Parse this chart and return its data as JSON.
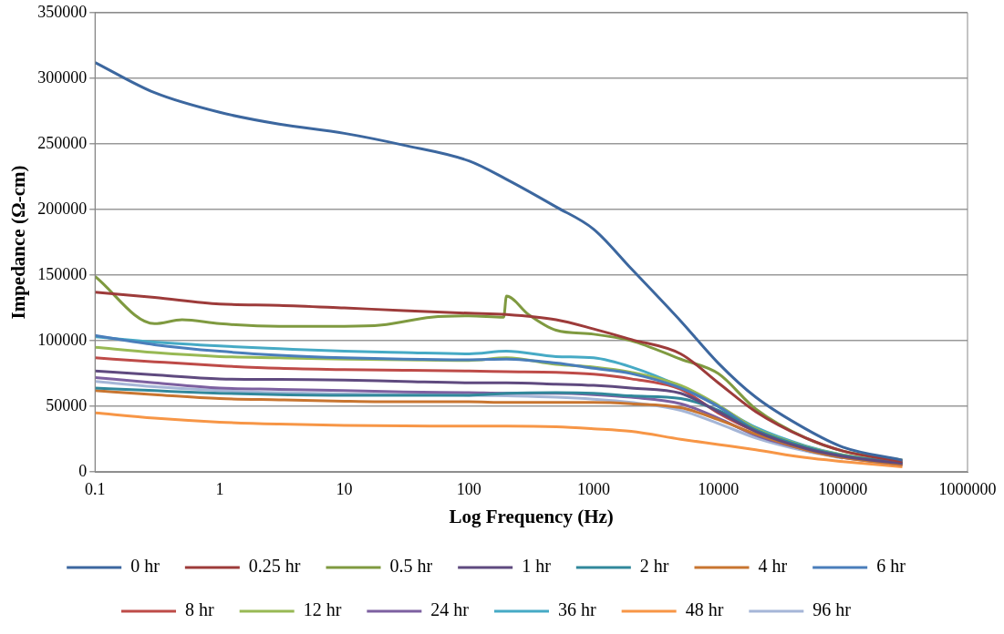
{
  "chart_data": {
    "type": "line",
    "xlabel": "Log Frequency (Hz)",
    "ylabel": "Impedance (Ω-cm)",
    "log": "x",
    "grid": "y",
    "legend": "bottom",
    "marker": "none",
    "xlim": [
      0.1,
      1000000
    ],
    "xticks": [
      0.1,
      1,
      10,
      100,
      1000,
      10000,
      100000,
      1000000
    ],
    "ylim": [
      0,
      350000
    ],
    "yticks": [
      0,
      50000,
      100000,
      150000,
      200000,
      250000,
      300000,
      350000
    ],
    "x": [
      0.1,
      0.3,
      1,
      3,
      10,
      30,
      100,
      200,
      500,
      1000,
      2000,
      5000,
      10000,
      20000,
      50000,
      100000,
      300000
    ],
    "series": [
      {
        "name": "0 hr",
        "color": "#3c679f",
        "values": [
          312000,
          289000,
          274000,
          265000,
          258000,
          249000,
          237000,
          223000,
          202000,
          185000,
          155000,
          115000,
          83000,
          57000,
          33000,
          19000,
          9000
        ]
      },
      {
        "name": "0.25 hr",
        "color": "#9d3b3a",
        "values": [
          137000,
          133000,
          128000,
          127000,
          125000,
          123000,
          121000,
          120000,
          116000,
          109000,
          101000,
          90000,
          68000,
          46000,
          26000,
          16000,
          8000
        ]
      },
      {
        "name": "0.5 hr",
        "color": "#7f9a40",
        "x": [
          0.1,
          0.3,
          0.5,
          1,
          3,
          10,
          20,
          50,
          100,
          190,
          200,
          300,
          500,
          1000,
          2000,
          5000,
          10000,
          20000,
          50000,
          100000,
          300000
        ],
        "values": [
          149000,
          113000,
          116000,
          113000,
          111000,
          111000,
          112000,
          118000,
          119000,
          118000,
          134000,
          120000,
          108000,
          105000,
          100000,
          86000,
          75000,
          48000,
          26000,
          16000,
          9000
        ]
      },
      {
        "name": "1 hr",
        "color": "#5f4a7f",
        "values": [
          77000,
          74000,
          71000,
          70500,
          70000,
          69000,
          68000,
          68000,
          67000,
          66000,
          64000,
          60000,
          46000,
          31000,
          18000,
          12000,
          6500
        ]
      },
      {
        "name": "2 hr",
        "color": "#31889b",
        "values": [
          64000,
          62000,
          60000,
          59000,
          58500,
          58500,
          58500,
          60000,
          60500,
          60000,
          58000,
          56000,
          47000,
          32000,
          19000,
          12500,
          7000
        ]
      },
      {
        "name": "4 hr",
        "color": "#c87530",
        "values": [
          62000,
          59000,
          56000,
          55000,
          54000,
          53500,
          53500,
          53000,
          53000,
          53000,
          52000,
          49000,
          40000,
          29000,
          17000,
          11000,
          5500
        ]
      },
      {
        "name": "6 hr",
        "color": "#4a7ebb",
        "values": [
          104000,
          97000,
          92000,
          89000,
          87000,
          86000,
          85500,
          86000,
          83000,
          79000,
          75000,
          64000,
          50000,
          32000,
          19000,
          12500,
          6500
        ]
      },
      {
        "name": "8 hr",
        "color": "#be4b48",
        "values": [
          87000,
          84000,
          81000,
          79000,
          78000,
          77500,
          77000,
          76500,
          76000,
          74500,
          71000,
          63000,
          45000,
          31000,
          18000,
          12000,
          6000
        ]
      },
      {
        "name": "12 hr",
        "color": "#98b954",
        "values": [
          95000,
          91000,
          88000,
          87000,
          86000,
          85500,
          85000,
          87000,
          82000,
          80000,
          76000,
          66000,
          51000,
          33000,
          19500,
          13000,
          7000
        ]
      },
      {
        "name": "24 hr",
        "color": "#7d60a0",
        "values": [
          72000,
          68000,
          64000,
          63000,
          62000,
          61000,
          60500,
          60000,
          60000,
          59000,
          57000,
          52000,
          41000,
          28000,
          17000,
          11000,
          5500
        ]
      },
      {
        "name": "36 hr",
        "color": "#46aac5",
        "values": [
          103000,
          99000,
          96000,
          94000,
          92000,
          91000,
          90000,
          92000,
          88000,
          87000,
          80000,
          65000,
          50000,
          34000,
          20000,
          13000,
          7000
        ]
      },
      {
        "name": "48 hr",
        "color": "#f79646",
        "values": [
          45000,
          41000,
          38000,
          36500,
          35500,
          35200,
          35000,
          35000,
          34500,
          33000,
          31000,
          25000,
          21000,
          17000,
          11000,
          8000,
          4000
        ]
      },
      {
        "name": "96 hr",
        "color": "#a5b6d7",
        "values": [
          69000,
          65000,
          62000,
          60500,
          59500,
          59000,
          58500,
          58000,
          57000,
          55500,
          53000,
          47000,
          37000,
          26000,
          16000,
          10500,
          null
        ]
      }
    ]
  }
}
